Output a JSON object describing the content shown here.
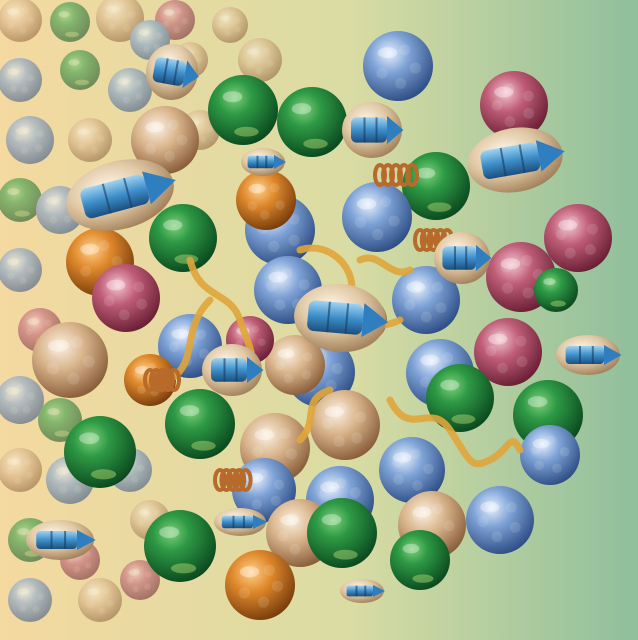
{
  "scene": {
    "description_visible_text": "",
    "palette": {
      "bg_left": "#f4d9a0",
      "bg_mid": "#d9dca3",
      "bg_right": "#8fbf9c",
      "green": "#1f7d3a",
      "blue": "#6f93c9",
      "pink": "#b5566f",
      "tan": "#d9b58e",
      "orange": "#e08a2c",
      "ribbon": "#e0a53a",
      "capsule_shell": "#e6d3b3",
      "capsule_blue": "#3d8ec9"
    },
    "sphere_types": [
      "green",
      "blue",
      "pink",
      "tan",
      "orange"
    ],
    "element_types": [
      "sphere",
      "capsule",
      "ribbon",
      "coil"
    ]
  }
}
